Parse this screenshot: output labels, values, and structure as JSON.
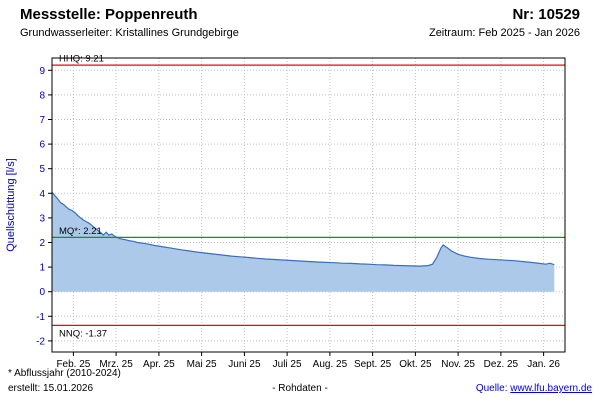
{
  "header": {
    "station_label": "Messstelle: Poppenreuth",
    "number_label": "Nr: 10529",
    "aquifer_label": "Grundwasserleiter: Kristallines Grundgebirge",
    "period_label": "Zeitraum: Feb 2025 - Jan 2026"
  },
  "footer": {
    "note": "* Abflussjahr (2010-2024)",
    "created": "erstellt: 15.01.2026",
    "data_type": "- Rohdaten -",
    "source_label": "Quelle:",
    "source_link": "www.lfu.bayern.de"
  },
  "chart_data": {
    "type": "area",
    "title": "",
    "ylabel": "Quellschüttung [l/s]",
    "xlabel": "",
    "ylim": [
      -2.45,
      9.5
    ],
    "xlim": [
      0,
      12
    ],
    "yticks": [
      -2,
      -1,
      0,
      1,
      2,
      3,
      4,
      5,
      6,
      7,
      8,
      9
    ],
    "x_tick_labels": [
      "Feb. 25",
      "Mrz. 25",
      "Apr. 25",
      "Mai 25",
      "Juni 25",
      "Juli 25",
      "Aug. 25",
      "Sept. 25",
      "Okt. 25",
      "Nov. 25",
      "Dez. 25",
      "Jan. 26"
    ],
    "grid": true,
    "legend": "none",
    "reference_lines": [
      {
        "name": "HHQ",
        "label": "HHQ: 9.21",
        "value": 9.21,
        "color": "#ff0000",
        "label_position": "above"
      },
      {
        "name": "MQ",
        "label": "MQ*: 2.21",
        "value": 2.21,
        "color": "#00a000",
        "label_position": "above"
      },
      {
        "name": "NNQ",
        "label": "NNQ: -1.37",
        "value": -1.37,
        "color": "#ff0000",
        "label_position": "below"
      }
    ],
    "series": [
      {
        "name": "Quellschüttung Rohdaten",
        "x": [
          0,
          0.07,
          0.13,
          0.2,
          0.27,
          0.33,
          0.4,
          0.47,
          0.53,
          0.6,
          0.67,
          0.73,
          0.8,
          0.87,
          0.93,
          1,
          1.07,
          1.13,
          1.2,
          1.27,
          1.33,
          1.4,
          1.47,
          1.53,
          1.6,
          1.7,
          1.8,
          1.9,
          2,
          2.2,
          2.4,
          2.6,
          2.8,
          3,
          3.2,
          3.4,
          3.6,
          3.8,
          4,
          4.2,
          4.4,
          4.6,
          4.8,
          5,
          5.2,
          5.4,
          5.6,
          5.8,
          6,
          6.2,
          6.4,
          6.6,
          6.8,
          7,
          7.2,
          7.4,
          7.6,
          7.8,
          8,
          8.2,
          8.4,
          8.6,
          8.8,
          8.9,
          9,
          9.1,
          9.15,
          9.25,
          9.35,
          9.5,
          9.65,
          9.8,
          10,
          10.2,
          10.4,
          10.6,
          10.8,
          11,
          11.2,
          11.4,
          11.55,
          11.65,
          11.75
        ],
        "y": [
          4.05,
          3.9,
          3.78,
          3.62,
          3.55,
          3.45,
          3.35,
          3.3,
          3.22,
          3.1,
          3.0,
          2.92,
          2.85,
          2.78,
          2.7,
          2.6,
          2.5,
          2.42,
          2.3,
          2.42,
          2.3,
          2.35,
          2.25,
          2.2,
          2.15,
          2.12,
          2.08,
          2.05,
          2.0,
          1.95,
          1.88,
          1.82,
          1.77,
          1.71,
          1.66,
          1.61,
          1.57,
          1.53,
          1.49,
          1.45,
          1.42,
          1.39,
          1.36,
          1.33,
          1.31,
          1.29,
          1.27,
          1.25,
          1.23,
          1.21,
          1.19,
          1.18,
          1.16,
          1.15,
          1.13,
          1.12,
          1.1,
          1.09,
          1.07,
          1.06,
          1.05,
          1.04,
          1.06,
          1.12,
          1.4,
          1.78,
          1.9,
          1.78,
          1.65,
          1.52,
          1.45,
          1.4,
          1.35,
          1.32,
          1.3,
          1.28,
          1.26,
          1.23,
          1.19,
          1.15,
          1.12,
          1.16,
          1.1
        ]
      }
    ],
    "fill_baseline": 0,
    "colors": {
      "line": "#3a6ebc",
      "fill": "#adc9ea",
      "grid": "#c0c0c0",
      "axis_text": "#0000bb",
      "frame": "#000000"
    }
  }
}
